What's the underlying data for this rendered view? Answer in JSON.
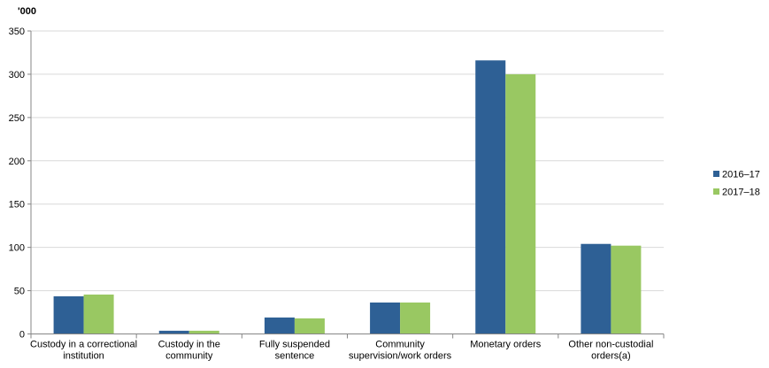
{
  "chart_data": {
    "type": "bar",
    "title": "",
    "ylabel": "'000",
    "xlabel": "",
    "ylim": [
      0,
      350
    ],
    "yticks": [
      0,
      50,
      100,
      150,
      200,
      250,
      300,
      350
    ],
    "grid": true,
    "legend_position": "right",
    "categories": [
      [
        "Custody in a correctional",
        "institution"
      ],
      [
        "Custody in the",
        "community"
      ],
      [
        "Fully suspended",
        "sentence"
      ],
      [
        "Community",
        "supervision/work orders"
      ],
      [
        "Monetary orders"
      ],
      [
        "Other non-custodial",
        "orders(a)"
      ]
    ],
    "series": [
      {
        "name": "2016–17",
        "color": "#2e6095",
        "values": [
          43.5,
          3.7,
          19,
          36.3,
          316,
          104
        ]
      },
      {
        "name": "2017–18",
        "color": "#99c862",
        "values": [
          45.5,
          3.7,
          18,
          36.3,
          300,
          102
        ]
      }
    ]
  }
}
